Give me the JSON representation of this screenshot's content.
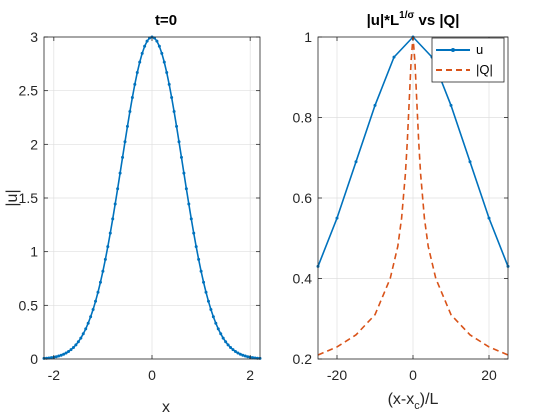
{
  "figure": {
    "background": "#ffffff"
  },
  "chart_data": [
    {
      "type": "line",
      "title": "t=0",
      "xlabel": "x",
      "ylabel": "|u|",
      "xlim": [
        -2.2,
        2.2
      ],
      "ylim": [
        0,
        3
      ],
      "xticks": [
        -2,
        0,
        2
      ],
      "xtick_labels": [
        "-2",
        "0",
        "2"
      ],
      "yticks": [
        0,
        0.5,
        1,
        1.5,
        2,
        2.5,
        3
      ],
      "ytick_labels": [
        "0",
        "0.5",
        "1",
        "1.5",
        "2",
        "2.5",
        "3"
      ],
      "grid": true,
      "series": [
        {
          "name": "",
          "color": "#0072BD",
          "line_style": "solid",
          "marker": "dot",
          "peak": 3,
          "x": [
            -2.2,
            -2.0,
            -1.8,
            -1.6,
            -1.4,
            -1.2,
            -1.0,
            -0.8,
            -0.6,
            -0.4,
            -0.2,
            0,
            0.2,
            0.4,
            0.6,
            0.8,
            1.0,
            1.2,
            1.4,
            1.6,
            1.8,
            2.0,
            2.2
          ],
          "y": [
            0.02,
            0.05,
            0.1,
            0.2,
            0.38,
            0.65,
            1.02,
            1.5,
            2.05,
            2.55,
            2.88,
            3.0,
            2.88,
            2.55,
            2.05,
            1.5,
            1.02,
            0.65,
            0.38,
            0.2,
            0.1,
            0.05,
            0.02
          ]
        }
      ]
    },
    {
      "type": "line",
      "title_base": "|u|*L",
      "title_sup": "1/σ",
      "title_rest": " vs |Q|",
      "xlabel_base": "(x-x",
      "xlabel_sub": "c",
      "xlabel_rest": ")/L",
      "xlim": [
        -25,
        25
      ],
      "ylim": [
        0.2,
        1
      ],
      "xticks": [
        -20,
        0,
        20
      ],
      "xtick_labels": [
        "-20",
        "0",
        "20"
      ],
      "yticks": [
        0.2,
        0.4,
        0.6,
        0.8,
        1
      ],
      "ytick_labels": [
        "0.2",
        "0.4",
        "0.6",
        "0.8",
        "1"
      ],
      "grid": true,
      "legend": {
        "placement": "top-right",
        "entries": [
          "u",
          "|Q|"
        ]
      },
      "series": [
        {
          "name": "u",
          "color": "#0072BD",
          "line_style": "solid",
          "marker": "dot",
          "x": [
            -25,
            -20,
            -15,
            -10,
            -5,
            0,
            5,
            10,
            15,
            20,
            25
          ],
          "y": [
            0.43,
            0.55,
            0.69,
            0.83,
            0.95,
            1.0,
            0.95,
            0.83,
            0.69,
            0.55,
            0.43
          ]
        },
        {
          "name": "|Q|",
          "color": "#D95319",
          "line_style": "dashed",
          "marker": "none",
          "x": [
            -25,
            -20,
            -15,
            -10,
            -6,
            -4,
            -3,
            -2,
            -1.5,
            -1,
            -0.5,
            0,
            0.5,
            1,
            1.5,
            2,
            3,
            4,
            6,
            10,
            15,
            20,
            25
          ],
          "y": [
            0.21,
            0.23,
            0.26,
            0.31,
            0.4,
            0.48,
            0.55,
            0.66,
            0.74,
            0.84,
            0.94,
            1.0,
            0.94,
            0.84,
            0.74,
            0.66,
            0.55,
            0.48,
            0.4,
            0.31,
            0.26,
            0.23,
            0.21
          ]
        }
      ]
    }
  ]
}
